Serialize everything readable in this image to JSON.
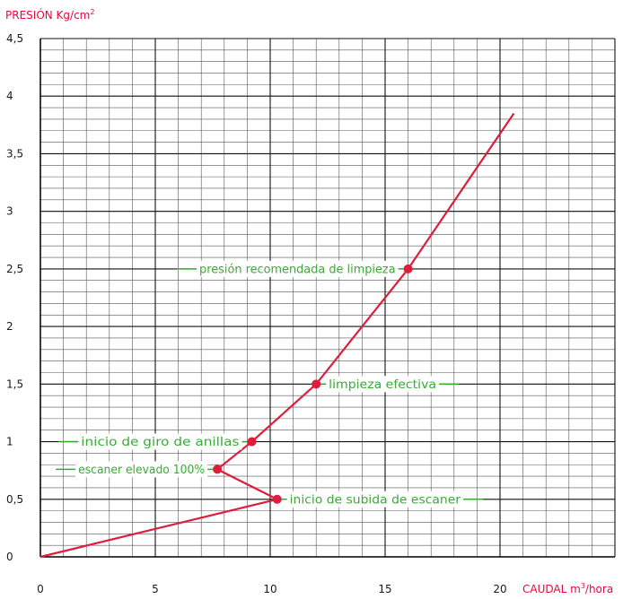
{
  "chart_data": {
    "type": "line",
    "ylabel": "PRESIÓN Kg/cm",
    "ylabel_sup": "2",
    "xlabel": "CAUDAL m",
    "xlabel_sup": "3",
    "xlabel_suffix": "/hora",
    "xlim": [
      0,
      25
    ],
    "ylim": [
      0,
      4.5
    ],
    "x_ticks": [
      0,
      5,
      10,
      15,
      20
    ],
    "x_tick_labels": [
      "0",
      "5",
      "10",
      "15",
      "20"
    ],
    "y_ticks": [
      0,
      0.5,
      1,
      1.5,
      2,
      2.5,
      3,
      3.5,
      4,
      4.5
    ],
    "y_tick_labels": [
      "0",
      "0,5",
      "1",
      "1,5",
      "2",
      "2,5",
      "3",
      "3,5",
      "4",
      "4,5"
    ],
    "grid": true,
    "line_color": "#dc1e3c",
    "annotation_color": "#3aaa35",
    "series": [
      {
        "x": [
          0,
          10.3,
          7.7,
          9.2,
          12.0,
          16.0,
          20.6
        ],
        "y": [
          0,
          0.5,
          0.76,
          1.0,
          1.5,
          2.5,
          3.85
        ]
      }
    ],
    "annotations": [
      {
        "x": 10.3,
        "y": 0.5,
        "text": "inicio de subida de escaner",
        "side": "right"
      },
      {
        "x": 7.7,
        "y": 0.76,
        "text": "escaner elevado 100%",
        "side": "left"
      },
      {
        "x": 9.2,
        "y": 1.0,
        "text": "inicio de giro de anillas",
        "side": "left"
      },
      {
        "x": 12.0,
        "y": 1.5,
        "text": "limpieza efectiva",
        "side": "right"
      },
      {
        "x": 16.0,
        "y": 2.5,
        "text": "presión recomendada de limpieza",
        "side": "left"
      }
    ]
  }
}
